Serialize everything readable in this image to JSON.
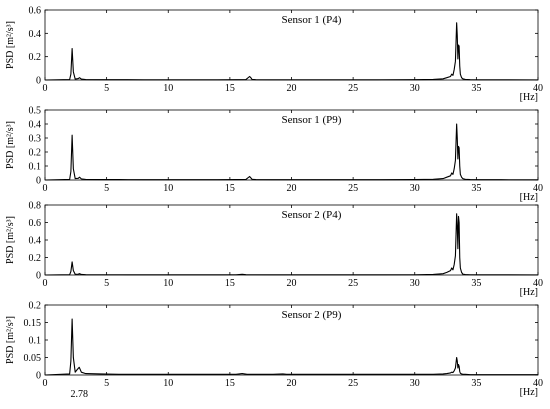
{
  "chart_data": [
    {
      "type": "line",
      "title": "Sensor 1  (P4)",
      "xlabel": "[Hz]",
      "ylabel": "PSD  [m²/s³]",
      "xlim": [
        0,
        40
      ],
      "ylim": [
        0,
        0.6
      ],
      "xticks": [
        0,
        5,
        10,
        15,
        20,
        25,
        30,
        35,
        40
      ],
      "yticks": [
        0,
        0.2,
        0.4,
        0.6
      ],
      "ytick_labels": [
        "0",
        "0.2",
        "0.4",
        "0.6"
      ],
      "x": [
        0,
        2.0,
        2.1,
        2.2,
        2.3,
        2.45,
        2.7,
        2.8,
        2.95,
        3.3,
        4.5,
        6.0,
        8.0,
        10.0,
        12.0,
        14.0,
        15.5,
        16.3,
        16.6,
        16.7,
        16.8,
        17.1,
        18.5,
        21.0,
        24.0,
        27.0,
        30.0,
        31.5,
        32.3,
        32.6,
        32.9,
        33.0,
        33.1,
        33.2,
        33.3,
        33.4,
        33.45,
        33.5,
        33.55,
        33.6,
        33.65,
        33.7,
        33.8,
        33.9,
        34.1,
        34.5,
        35.5,
        37.0,
        40.0
      ],
      "y": [
        0,
        0.004,
        0.05,
        0.27,
        0.07,
        0.008,
        0.012,
        0.02,
        0.008,
        0.004,
        0.003,
        0.003,
        0.002,
        0.002,
        0.002,
        0.002,
        0.003,
        0.004,
        0.03,
        0.02,
        0.005,
        0.003,
        0.002,
        0.002,
        0.002,
        0.002,
        0.003,
        0.005,
        0.01,
        0.02,
        0.03,
        0.05,
        0.04,
        0.09,
        0.16,
        0.49,
        0.38,
        0.18,
        0.3,
        0.29,
        0.12,
        0.05,
        0.02,
        0.01,
        0.005,
        0.003,
        0.002,
        0.002,
        0.001
      ]
    },
    {
      "type": "line",
      "title": "Sensor 1  (P9)",
      "xlabel": "[Hz]",
      "ylabel": "PSD  [m²/s³]",
      "xlim": [
        0,
        40
      ],
      "ylim": [
        0,
        0.5
      ],
      "xticks": [
        0,
        5,
        10,
        15,
        20,
        25,
        30,
        35,
        40
      ],
      "yticks": [
        0,
        0.1,
        0.2,
        0.3,
        0.4,
        0.5
      ],
      "ytick_labels": [
        "0",
        "0.1",
        "0.2",
        "0.3",
        "0.4",
        "0.5"
      ],
      "x": [
        0,
        2.0,
        2.1,
        2.2,
        2.3,
        2.45,
        2.7,
        2.8,
        2.95,
        3.3,
        4.5,
        6.0,
        8.0,
        10.0,
        12.0,
        14.0,
        15.5,
        16.3,
        16.6,
        16.7,
        16.8,
        17.1,
        18.5,
        21.0,
        24.0,
        27.0,
        30.0,
        31.5,
        32.3,
        32.6,
        32.9,
        33.0,
        33.1,
        33.2,
        33.3,
        33.4,
        33.45,
        33.5,
        33.55,
        33.6,
        33.65,
        33.7,
        33.8,
        33.9,
        34.1,
        34.5,
        35.5,
        37.0,
        40.0
      ],
      "y": [
        0,
        0.004,
        0.06,
        0.32,
        0.08,
        0.01,
        0.012,
        0.02,
        0.008,
        0.004,
        0.003,
        0.003,
        0.002,
        0.002,
        0.002,
        0.002,
        0.003,
        0.004,
        0.025,
        0.015,
        0.005,
        0.003,
        0.002,
        0.002,
        0.002,
        0.002,
        0.003,
        0.005,
        0.01,
        0.02,
        0.03,
        0.05,
        0.04,
        0.08,
        0.14,
        0.4,
        0.3,
        0.15,
        0.24,
        0.23,
        0.1,
        0.04,
        0.02,
        0.01,
        0.005,
        0.003,
        0.002,
        0.002,
        0.001
      ]
    },
    {
      "type": "line",
      "title": "Sensor 2  (P4)",
      "xlabel": "[Hz]",
      "ylabel": "PSD  [m²/s³]",
      "xlim": [
        0,
        40
      ],
      "ylim": [
        0,
        0.8
      ],
      "xticks": [
        0,
        5,
        10,
        15,
        20,
        25,
        30,
        35,
        40
      ],
      "yticks": [
        0,
        0.2,
        0.4,
        0.6,
        0.8
      ],
      "ytick_labels": [
        "0",
        "0.2",
        "0.4",
        "0.6",
        "0.8"
      ],
      "x": [
        0,
        2.0,
        2.1,
        2.2,
        2.3,
        2.45,
        2.7,
        2.8,
        2.95,
        3.3,
        4.5,
        6.0,
        8.0,
        10.0,
        12.0,
        14.0,
        15.5,
        16.0,
        16.3,
        16.6,
        18.5,
        21.0,
        24.0,
        27.0,
        30.0,
        31.5,
        32.3,
        32.6,
        32.9,
        33.0,
        33.1,
        33.2,
        33.3,
        33.4,
        33.45,
        33.5,
        33.55,
        33.6,
        33.65,
        33.7,
        33.8,
        33.9,
        34.1,
        34.5,
        35.5,
        37.0,
        40.0
      ],
      "y": [
        0,
        0.004,
        0.04,
        0.15,
        0.05,
        0.008,
        0.01,
        0.015,
        0.006,
        0.004,
        0.003,
        0.003,
        0.002,
        0.002,
        0.002,
        0.002,
        0.003,
        0.008,
        0.004,
        0.003,
        0.002,
        0.002,
        0.002,
        0.002,
        0.003,
        0.006,
        0.015,
        0.03,
        0.05,
        0.08,
        0.06,
        0.12,
        0.22,
        0.7,
        0.55,
        0.3,
        0.67,
        0.6,
        0.2,
        0.08,
        0.03,
        0.01,
        0.005,
        0.003,
        0.002,
        0.002,
        0.001
      ]
    },
    {
      "type": "line",
      "title": "Sensor 2  (P9)",
      "xlabel": "[Hz]",
      "ylabel": "PSD  [m²/s³]",
      "annotation": "2.78",
      "xlim": [
        0,
        40
      ],
      "ylim": [
        0,
        0.2
      ],
      "xticks": [
        0,
        5,
        10,
        15,
        20,
        25,
        30,
        35,
        40
      ],
      "yticks": [
        0,
        0.05,
        0.1,
        0.15,
        0.2
      ],
      "ytick_labels": [
        "0",
        "0.05",
        "0.1",
        "0.15",
        "0.2"
      ],
      "x": [
        0,
        2.0,
        2.1,
        2.2,
        2.3,
        2.45,
        2.6,
        2.78,
        2.95,
        3.3,
        4.5,
        6.0,
        8.0,
        10.0,
        12.0,
        14.0,
        15.5,
        16.0,
        16.4,
        18.5,
        19.3,
        19.6,
        20.0,
        21.0,
        24.0,
        27.0,
        30.0,
        31.5,
        32.3,
        32.6,
        32.9,
        33.0,
        33.1,
        33.2,
        33.3,
        33.4,
        33.45,
        33.5,
        33.55,
        33.6,
        33.65,
        33.7,
        33.8,
        33.9,
        34.1,
        34.5,
        35.5,
        37.0,
        40.0
      ],
      "y": [
        0,
        0.003,
        0.04,
        0.16,
        0.05,
        0.008,
        0.015,
        0.022,
        0.008,
        0.004,
        0.003,
        0.002,
        0.002,
        0.002,
        0.002,
        0.002,
        0.002,
        0.004,
        0.002,
        0.002,
        0.003,
        0.002,
        0.002,
        0.002,
        0.002,
        0.002,
        0.002,
        0.002,
        0.003,
        0.004,
        0.006,
        0.008,
        0.007,
        0.012,
        0.02,
        0.05,
        0.04,
        0.02,
        0.03,
        0.025,
        0.01,
        0.005,
        0.003,
        0.002,
        0.002,
        0.001,
        0.001,
        0.001,
        0.001
      ]
    }
  ]
}
